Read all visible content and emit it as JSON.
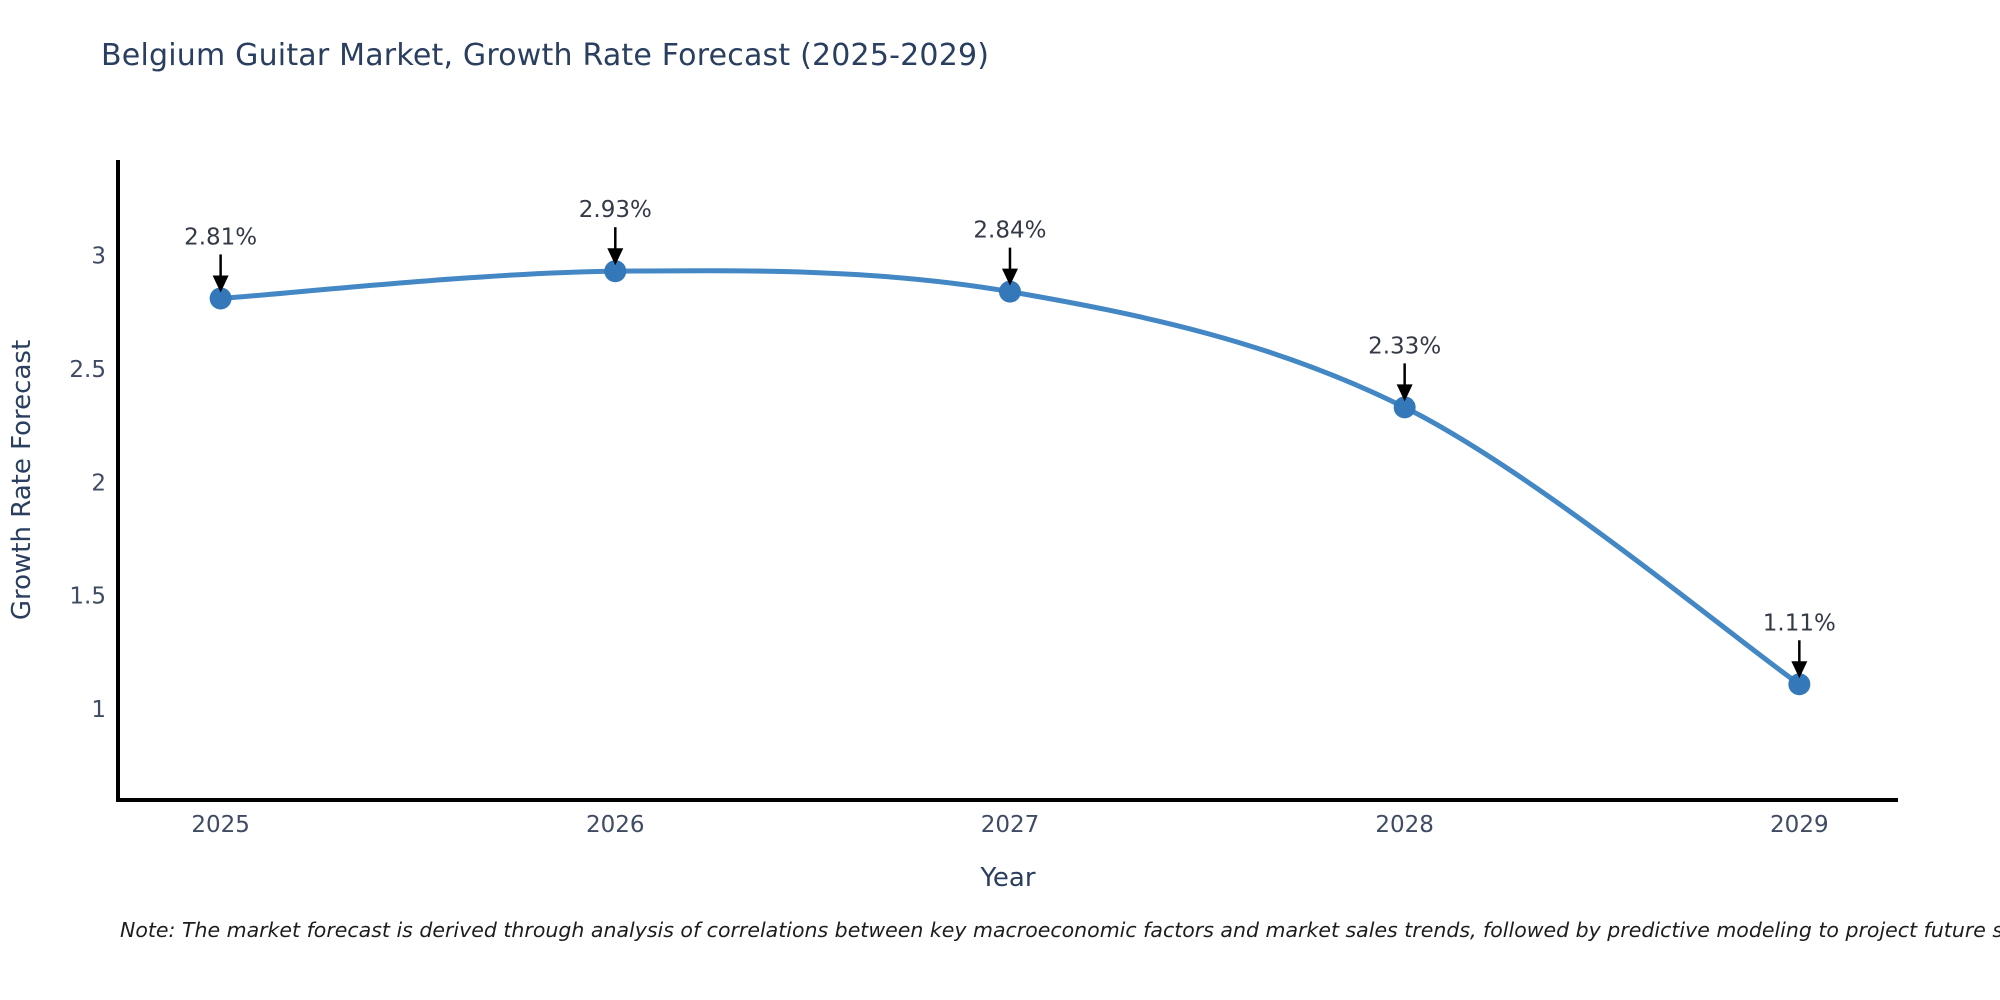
{
  "chart_data": {
    "type": "line",
    "title": "Belgium Guitar Market, Growth Rate Forecast (2025-2029)",
    "xlabel": "Year",
    "ylabel": "Growth Rate Forecast",
    "x": [
      2025,
      2026,
      2027,
      2028,
      2029
    ],
    "values": [
      2.81,
      2.93,
      2.84,
      2.33,
      1.11
    ],
    "point_labels": [
      "2.81%",
      "2.93%",
      "2.84%",
      "2.33%",
      "1.11%"
    ],
    "xticks": [
      2025,
      2026,
      2027,
      2028,
      2029
    ],
    "xtick_labels": [
      "2025",
      "2026",
      "2027",
      "2028",
      "2029"
    ],
    "yticks": [
      1,
      1.5,
      2,
      2.5,
      3
    ],
    "ytick_labels": [
      "1",
      "1.5",
      "2",
      "2.5",
      "3"
    ],
    "xlim": [
      2024.74,
      2029.25
    ],
    "ylim": [
      0.6,
      3.42
    ],
    "grid": false,
    "legend": "none",
    "line_shape": "spline",
    "colors": {
      "line": "#4387c4",
      "marker": "#3478b9",
      "axis": "#000000",
      "title_text": "#2a3f5f",
      "tick_text": "#3f4b63",
      "annotation_text": "#333a45",
      "arrow": "#000000",
      "background": "#ffffff"
    }
  },
  "note": "Note: The market forecast is derived through analysis of correlations between key macroeconomic factors and market sales trends, followed by predictive modeling to project future sales"
}
